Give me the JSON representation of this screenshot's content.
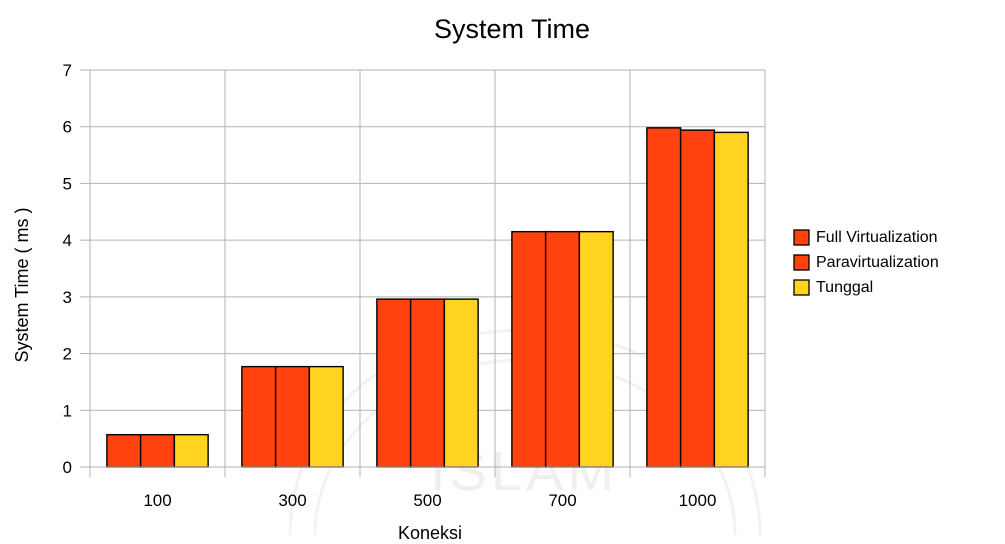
{
  "chart_data": {
    "type": "bar",
    "title": "System Time",
    "xlabel": "Koneksi",
    "ylabel": "System Time ( ms )",
    "categories": [
      "100",
      "300",
      "500",
      "700",
      "1000"
    ],
    "series": [
      {
        "name": "Full Virtualization",
        "color": "#ff420e",
        "values": [
          0.57,
          1.77,
          2.96,
          4.15,
          5.98
        ]
      },
      {
        "name": "Paravirtualization",
        "color": "#ff420e",
        "values": [
          0.57,
          1.77,
          2.96,
          4.15,
          5.94
        ]
      },
      {
        "name": "Tunggal",
        "color": "#ffd320",
        "values": [
          0.57,
          1.77,
          2.96,
          4.15,
          5.9
        ]
      }
    ],
    "ylim": [
      0,
      7
    ],
    "yticks": [
      0,
      1,
      2,
      3,
      4,
      5,
      6,
      7
    ],
    "grid": true,
    "legend_position": "right"
  },
  "watermark": {
    "text": "ISLAM"
  }
}
